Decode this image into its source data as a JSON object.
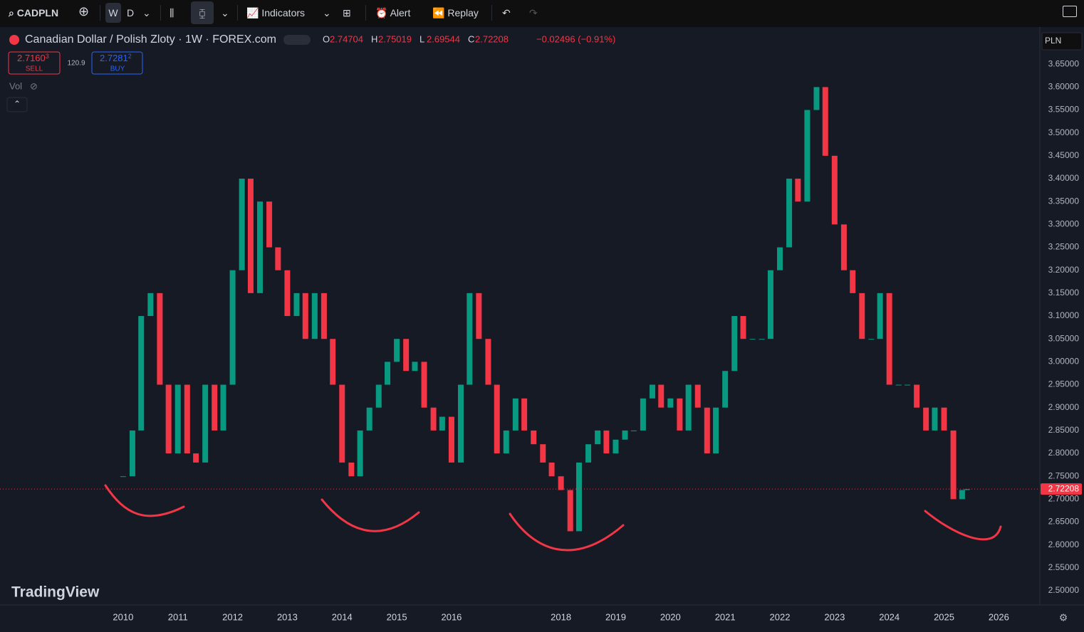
{
  "toolbar": {
    "symbol": "CADPLN",
    "intervals": [
      "W",
      "D"
    ],
    "indicators": "Indicators",
    "alert": "Alert",
    "replay": "Replay"
  },
  "legend": {
    "title": "Canadian Dollar / Polish Zloty · 1W · FOREX.com",
    "ohlc": [
      {
        "key": "O",
        "value": "2.74704"
      },
      {
        "key": "H",
        "value": "2.75019"
      },
      {
        "key": "L",
        "value": "2.69544"
      },
      {
        "key": "C",
        "value": "2.72208"
      }
    ],
    "change": "−0.02496 (−0.91%)",
    "sell": {
      "price": "2.7160",
      "pip": "3",
      "label": "SELL"
    },
    "spread": "120.9",
    "buy": {
      "price": "2.7281",
      "pip": "2",
      "label": "BUY"
    },
    "vol": "Vol"
  },
  "currency": "PLN",
  "logo": "TradingView",
  "chart_data": {
    "type": "candlestick",
    "up_color": "#089981",
    "down_color": "#f23645",
    "grid": true,
    "x": [
      2010.0,
      2010.17,
      2010.33,
      2010.5,
      2010.67,
      2010.83,
      2011.0,
      2011.17,
      2011.33,
      2011.5,
      2011.67,
      2011.83,
      2012.0,
      2012.17,
      2012.33,
      2012.5,
      2012.67,
      2012.83,
      2013.0,
      2013.17,
      2013.33,
      2013.5,
      2013.67,
      2013.83,
      2014.0,
      2014.17,
      2014.33,
      2014.5,
      2014.67,
      2014.83,
      2015.0,
      2015.17,
      2015.33,
      2015.5,
      2015.67,
      2015.83,
      2016.0,
      2016.17,
      2016.33,
      2016.5,
      2016.67,
      2016.83,
      2017.0,
      2017.17,
      2017.33,
      2017.5,
      2017.67,
      2017.83,
      2018.0,
      2018.17,
      2018.33,
      2018.5,
      2018.67,
      2018.83,
      2019.0,
      2019.17,
      2019.33,
      2019.5,
      2019.67,
      2019.83,
      2020.0,
      2020.17,
      2020.33,
      2020.5,
      2020.67,
      2020.83,
      2021.0,
      2021.17,
      2021.33,
      2021.5,
      2021.67,
      2021.83,
      2022.0,
      2022.17,
      2022.33,
      2022.5,
      2022.67,
      2022.83,
      2023.0,
      2023.17,
      2023.33,
      2023.5,
      2023.67,
      2023.83,
      2024.0,
      2024.17,
      2024.33,
      2024.5,
      2024.67,
      2024.83,
      2025.0,
      2025.17,
      2025.33,
      2025.42
    ],
    "close": [
      2.75,
      2.85,
      3.1,
      3.15,
      2.95,
      2.8,
      2.95,
      2.8,
      2.78,
      2.95,
      2.85,
      2.95,
      3.2,
      3.4,
      3.15,
      3.35,
      3.25,
      3.2,
      3.1,
      3.15,
      3.05,
      3.15,
      3.05,
      2.95,
      2.78,
      2.75,
      2.85,
      2.9,
      2.95,
      3.0,
      3.05,
      2.98,
      3.0,
      2.9,
      2.85,
      2.88,
      2.78,
      2.95,
      3.15,
      3.05,
      2.95,
      2.8,
      2.85,
      2.92,
      2.85,
      2.82,
      2.78,
      2.75,
      2.72,
      2.63,
      2.78,
      2.82,
      2.85,
      2.8,
      2.83,
      2.85,
      2.85,
      2.92,
      2.95,
      2.9,
      2.92,
      2.85,
      2.95,
      2.9,
      2.8,
      2.9,
      2.98,
      3.1,
      3.05,
      3.05,
      3.05,
      3.2,
      3.25,
      3.4,
      3.35,
      3.55,
      3.6,
      3.45,
      3.3,
      3.2,
      3.15,
      3.05,
      3.05,
      3.15,
      2.95,
      2.95,
      2.95,
      2.9,
      2.85,
      2.9,
      2.85,
      2.7,
      2.72,
      2.72208
    ],
    "last_price": 2.72208,
    "xlim": [
      2007.75,
      2026.75
    ],
    "xticks": [
      2010,
      2011,
      2012,
      2013,
      2014,
      2015,
      2016,
      2018,
      2019,
      2020,
      2021,
      2022,
      2023,
      2024,
      2025,
      2026
    ],
    "ylim": [
      2.469,
      3.728
    ],
    "yticks": [
      {
        "value": 2.5,
        "label": "2.50000"
      },
      {
        "value": 2.55,
        "label": "2.55000"
      },
      {
        "value": 2.6,
        "label": "2.60000"
      },
      {
        "value": 2.65,
        "label": "2.65000"
      },
      {
        "value": 2.7,
        "label": "2.70000"
      },
      {
        "value": 2.75,
        "label": "2.75000"
      },
      {
        "value": 2.8,
        "label": "2.80000"
      },
      {
        "value": 2.85,
        "label": "2.85000"
      },
      {
        "value": 2.9,
        "label": "2.90000"
      },
      {
        "value": 2.95,
        "label": "2.95000"
      },
      {
        "value": 3.0,
        "label": "3.00000"
      },
      {
        "value": 3.05,
        "label": "3.05000"
      },
      {
        "value": 3.1,
        "label": "3.10000"
      },
      {
        "value": 3.15,
        "label": "3.15000"
      },
      {
        "value": 3.2,
        "label": "3.20000"
      },
      {
        "value": 3.25,
        "label": "3.25000"
      },
      {
        "value": 3.3,
        "label": "3.30000"
      },
      {
        "value": 3.35,
        "label": "3.35000"
      },
      {
        "value": 3.4,
        "label": "3.40000"
      },
      {
        "value": 3.45,
        "label": "3.45000"
      },
      {
        "value": 3.5,
        "label": "3.50000"
      },
      {
        "value": 3.55,
        "label": "3.55000"
      },
      {
        "value": 3.6,
        "label": "3.60000"
      },
      {
        "value": 3.65,
        "label": "3.65000"
      }
    ]
  }
}
